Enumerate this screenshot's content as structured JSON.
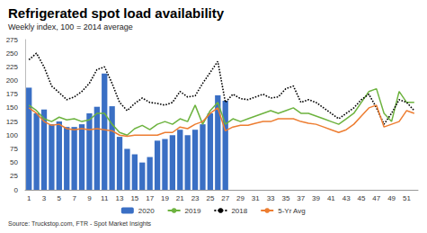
{
  "chart_data": {
    "type": "bar",
    "title": "Refrigerated spot load availability",
    "subtitle": "Weekly index, 100 = 2014 average",
    "source": "Source: Truckstop.com, FTR - Spot Market Insights",
    "categories": [
      1,
      null,
      3,
      null,
      5,
      null,
      7,
      null,
      9,
      null,
      11,
      null,
      13,
      null,
      15,
      null,
      17,
      null,
      19,
      null,
      21,
      null,
      23,
      null,
      25,
      null,
      27,
      null,
      29,
      null,
      31,
      null,
      33,
      null,
      35,
      null,
      37,
      null,
      39,
      null,
      41,
      null,
      43,
      null,
      45,
      null,
      47,
      null,
      49,
      null,
      51,
      null
    ],
    "series": [
      {
        "name": "2020",
        "type": "bar",
        "color": "#3a6fc4",
        "values": [
          187,
          140,
          147,
          120,
          125,
          115,
          115,
          120,
          140,
          152,
          213,
          153,
          97,
          75,
          65,
          50,
          60,
          90,
          93,
          100,
          110,
          100,
          110,
          120,
          140,
          173,
          163,
          null,
          null,
          null,
          null,
          null,
          null,
          null,
          null,
          null,
          null,
          null,
          null,
          null,
          null,
          null,
          null,
          null,
          null,
          null,
          null,
          null,
          null,
          null,
          null,
          null
        ]
      },
      {
        "name": "2019",
        "type": "line",
        "color": "#6db33f",
        "marker": "none",
        "line_style": "solid",
        "values": [
          155,
          145,
          130,
          125,
          133,
          128,
          130,
          125,
          128,
          140,
          140,
          120,
          105,
          100,
          112,
          118,
          110,
          120,
          125,
          120,
          130,
          125,
          155,
          120,
          145,
          160,
          120,
          130,
          125,
          130,
          135,
          140,
          145,
          140,
          145,
          150,
          140,
          140,
          135,
          130,
          125,
          120,
          130,
          140,
          160,
          180,
          185,
          140,
          125,
          180,
          160,
          160
        ]
      },
      {
        "name": "2018",
        "type": "line",
        "color": "#000000",
        "marker": "none",
        "line_style": "dotted",
        "values": [
          238,
          250,
          225,
          190,
          178,
          165,
          170,
          180,
          195,
          220,
          225,
          195,
          160,
          145,
          158,
          168,
          160,
          158,
          155,
          160,
          180,
          170,
          172,
          195,
          215,
          235,
          160,
          175,
          167,
          165,
          170,
          175,
          168,
          170,
          185,
          190,
          160,
          165,
          160,
          150,
          140,
          130,
          140,
          150,
          165,
          175,
          150,
          120,
          140,
          165,
          160,
          145
        ]
      },
      {
        "name": "5-Yr Avg",
        "type": "line",
        "color": "#ed7d31",
        "marker": "none",
        "line_style": "solid",
        "values": [
          150,
          140,
          125,
          118,
          120,
          112,
          110,
          112,
          110,
          112,
          110,
          108,
          100,
          98,
          100,
          100,
          100,
          100,
          105,
          105,
          115,
          112,
          120,
          125,
          140,
          150,
          108,
          115,
          118,
          118,
          122,
          125,
          125,
          130,
          130,
          130,
          125,
          122,
          120,
          115,
          110,
          105,
          110,
          120,
          135,
          150,
          155,
          115,
          120,
          125,
          145,
          140
        ]
      }
    ],
    "ylim": [
      0,
      275
    ],
    "yticks": [
      0,
      25,
      50,
      75,
      100,
      125,
      150,
      175,
      200,
      225,
      250,
      275
    ],
    "grid": false,
    "legend": "bottom"
  }
}
